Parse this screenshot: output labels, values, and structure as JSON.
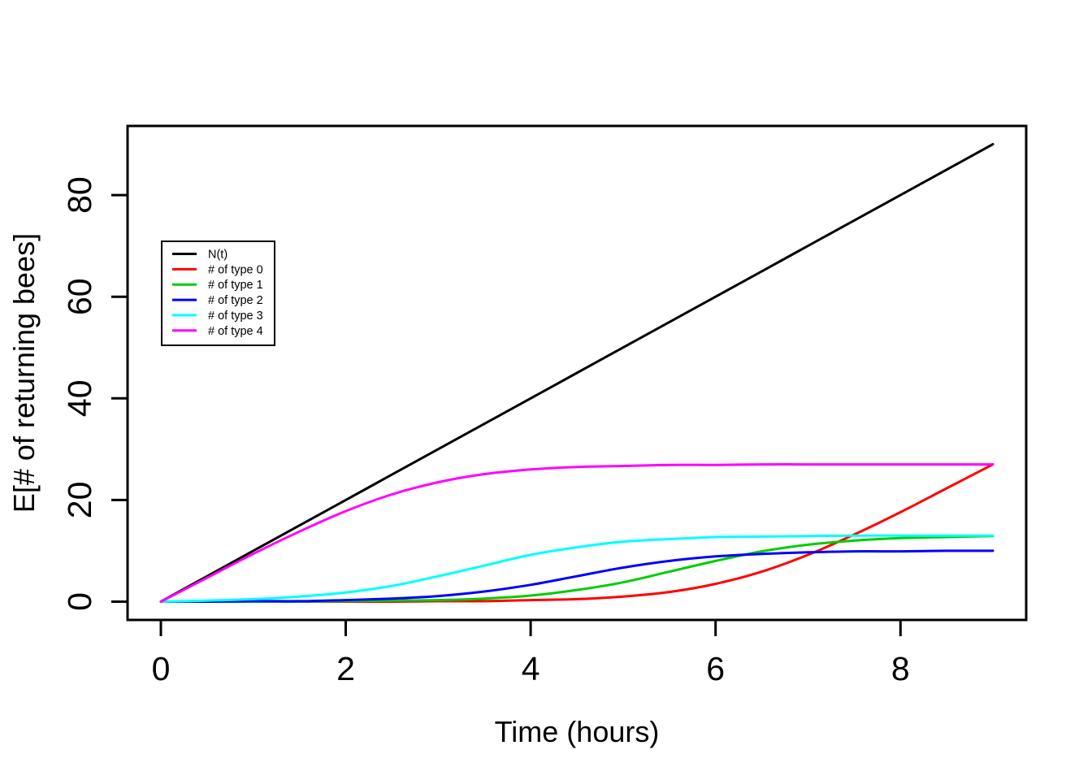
{
  "figure": {
    "background": "#FFFFFF",
    "foreground": "#000000"
  },
  "chart_data": {
    "type": "line",
    "title": "",
    "xlabel": "Time (hours)",
    "ylabel": "E[# of returning bees]",
    "xlim": [
      0,
      9
    ],
    "ylim": [
      0,
      90
    ],
    "axis_expansion": 0.04,
    "grid": false,
    "xticks": [
      "0",
      "2",
      "4",
      "6",
      "8"
    ],
    "xtick_values": [
      0,
      2,
      4,
      6,
      8
    ],
    "yticks": [
      "0",
      "20",
      "40",
      "60",
      "80"
    ],
    "ytick_values": [
      0,
      20,
      40,
      60,
      80
    ],
    "legend": {
      "position": "top-left-inset",
      "border": true
    },
    "x": [
      0,
      0.5,
      1,
      1.5,
      2,
      2.5,
      3,
      3.5,
      4,
      4.5,
      5,
      5.5,
      6,
      6.5,
      7,
      7.5,
      8,
      8.5,
      9
    ],
    "series": [
      {
        "name": "N(t)",
        "color": "#000000",
        "values": [
          0,
          5,
          10,
          15,
          20,
          25,
          30,
          35,
          40,
          45,
          50,
          55,
          60,
          65,
          70,
          75,
          80,
          85,
          90
        ]
      },
      {
        "name": "# of type 0",
        "color": "#FF0000",
        "values": [
          0,
          0,
          0,
          0,
          0,
          0,
          0.1,
          0.1,
          0.3,
          0.5,
          1,
          1.9,
          3.5,
          5.9,
          9.2,
          13.2,
          17.6,
          22.3,
          27
        ]
      },
      {
        "name": "# of type 1",
        "color": "#00CD00",
        "values": [
          0,
          0,
          0,
          0,
          0.1,
          0.2,
          0.3,
          0.6,
          1.2,
          2.3,
          3.8,
          5.9,
          8,
          9.9,
          11.2,
          12,
          12.5,
          12.7,
          12.9
        ]
      },
      {
        "name": "# of type 2",
        "color": "#0000FF",
        "values": [
          0,
          0,
          0.1,
          0.1,
          0.3,
          0.6,
          1.1,
          2,
          3.3,
          5,
          6.7,
          8,
          8.9,
          9.4,
          9.7,
          9.9,
          9.9,
          10,
          10
        ]
      },
      {
        "name": "# of type 3",
        "color": "#00FFFF",
        "values": [
          0,
          0.2,
          0.5,
          1,
          1.8,
          3.1,
          5,
          7.1,
          9.2,
          10.7,
          11.8,
          12.3,
          12.7,
          12.8,
          12.9,
          13,
          13,
          13,
          13
        ]
      },
      {
        "name": "# of type 4",
        "color": "#FF00FF",
        "values": [
          0,
          4.7,
          9.4,
          13.8,
          17.8,
          21.1,
          23.5,
          25.1,
          26,
          26.5,
          26.7,
          26.9,
          26.9,
          27,
          27,
          27,
          27,
          27,
          27
        ]
      }
    ]
  }
}
